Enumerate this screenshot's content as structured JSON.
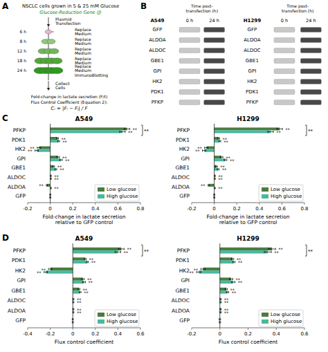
{
  "chart_data": [
    {
      "type": "diagram",
      "panel_label": "A",
      "categories": [
        "6 h",
        "8 h",
        "12 h",
        "18 h",
        "24 h"
      ],
      "colors": [
        "#e8b4cc",
        "#90c978",
        "#70b858",
        "#50a838",
        "#309820"
      ],
      "annotations": [
        {
          "text": "NSCLC cells grown in 5 & 25 mM Glucose"
        },
        {
          "text": "Glucose-Reduction Gene (J)",
          "color": "green"
        },
        {
          "text": "Plasmid\nTransfection"
        },
        {
          "text": "Replace\nMedium"
        },
        {
          "text": "Replace\nMedium"
        },
        {
          "text": "Replace\nMedium"
        },
        {
          "text": "Replace\nMedium"
        },
        {
          "text": "Replace\nMedium\nImmunoBlotting"
        },
        {
          "text": "Collect\nCells"
        },
        {
          "text": "Fold-change in lactate secretion (F/t)"
        },
        {
          "text": "Flux Control Coefficient (Equation 2):"
        },
        {
          "text": "Cᵢ = |Fᵢ − Fⱼ| / F"
        }
      ]
    },
    {
      "type": "blot",
      "panel_label": "B",
      "categories": [
        "GFP",
        "ALDOA",
        "ALDOC",
        "GBE1",
        "GPI",
        "HK2",
        "PDK1",
        "PFKP"
      ],
      "colors": [
        "#c8c8c8",
        "#484848"
      ],
      "annotations": [
        "Time post-\ntransfection (h)",
        "Time post-\ntransfection (h)",
        "A549",
        "0 h",
        "24 h",
        "H1299",
        "0 h",
        "24 h"
      ]
    },
    {
      "type": "bar",
      "orientation": "horizontal",
      "panel_label": "C",
      "title": "A549",
      "xlabel": "Fold-change in lactate secretion\nrelative to GFP control",
      "categories": [
        "GFP",
        "ALDOA",
        "ALDOC",
        "GBE1",
        "GPI",
        "HK2",
        "PDK1",
        "PFKP"
      ],
      "series": [
        {
          "name": "Low glucose",
          "color": "#4a7c3f",
          "values": [
            0,
            -0.03,
            0.005,
            0.03,
            0.07,
            -0.1,
            0.065,
            0.68
          ],
          "errors": [
            0.005,
            0.005,
            0.005,
            0.008,
            0.012,
            0.015,
            0.008,
            0.025
          ]
        },
        {
          "name": "High glucose",
          "color": "#4ab8a0",
          "values": [
            0,
            0.005,
            0.005,
            0.05,
            0.095,
            -0.12,
            0.075,
            0.64
          ],
          "errors": [
            0.005,
            0.005,
            0.005,
            0.008,
            0.012,
            0.015,
            0.008,
            0.025
          ]
        }
      ],
      "xlim": [
        -0.2,
        0.8
      ],
      "xticks": [
        -0.2,
        0,
        0.2,
        0.4,
        0.6,
        0.8
      ],
      "legend": "lower right",
      "grid": false,
      "annotations": [
        {
          "text": "**",
          "categories": [
            "ALDOA",
            "ALDOC",
            "GBE1",
            "GPI",
            "HK2",
            "PDK1",
            "PFKP"
          ]
        },
        {
          "text": "**",
          "bracket": "PFKP"
        }
      ]
    },
    {
      "type": "bar",
      "orientation": "horizontal",
      "title": "H1299",
      "xlabel": "Fold-change in lactate secretion\nrelative to GFP control",
      "categories": [
        "GFP",
        "ALDOA",
        "ALDOC",
        "GBE1",
        "GPI",
        "HK2",
        "PDK1",
        "PFKP"
      ],
      "series": [
        {
          "name": "Low glucose",
          "color": "#4a7c3f",
          "values": [
            0,
            -0.05,
            0.005,
            0.02,
            0.065,
            -0.07,
            0.04,
            0.58
          ],
          "errors": [
            0.005,
            0.005,
            0.005,
            0.008,
            0.012,
            0.015,
            0.008,
            0.025
          ]
        },
        {
          "name": "High glucose",
          "color": "#4ab8a0",
          "values": [
            0,
            0.005,
            0.005,
            0.035,
            0.1,
            -0.09,
            0.05,
            0.5
          ],
          "errors": [
            0.005,
            0.005,
            0.005,
            0.008,
            0.012,
            0.015,
            0.008,
            0.025
          ]
        }
      ],
      "xlim": [
        -0.2,
        0.8
      ],
      "xticks": [
        -0.2,
        0,
        0.2,
        0.4,
        0.6,
        0.8
      ],
      "legend": "lower right",
      "grid": false,
      "annotations": [
        {
          "text": "**",
          "categories": [
            "ALDOA",
            "ALDOC",
            "GBE1",
            "GPI",
            "HK2",
            "PDK1",
            "PFKP"
          ]
        },
        {
          "text": "**",
          "bracket": "PFKP"
        }
      ]
    },
    {
      "type": "bar",
      "orientation": "horizontal",
      "panel_label": "D",
      "title": "A549",
      "xlabel": "Flux control coefficient",
      "categories": [
        "GFP",
        "ALDOA",
        "ALDOC",
        "GBE1",
        "GPI",
        "HK2",
        "PDK1",
        "PFKP"
      ],
      "series": [
        {
          "name": "Low glucose",
          "color": "#4a7c3f",
          "values": [
            0,
            0.005,
            0.005,
            0.055,
            0.09,
            -0.2,
            0.11,
            0.43
          ],
          "errors": [
            0.005,
            0.005,
            0.005,
            0.008,
            0.012,
            0.015,
            0.008,
            0.025
          ]
        },
        {
          "name": "High glucose",
          "color": "#4ab8a0",
          "values": [
            0,
            0.005,
            0.005,
            0.065,
            0.1,
            -0.24,
            0.13,
            0.4
          ],
          "errors": [
            0.005,
            0.005,
            0.005,
            0.008,
            0.012,
            0.015,
            0.008,
            0.025
          ]
        }
      ],
      "xlim": [
        -0.4,
        0.6
      ],
      "xticks": [
        -0.4,
        -0.2,
        0,
        0.2,
        0.4,
        0.6
      ],
      "legend": "lower right",
      "grid": false,
      "annotations": [
        {
          "text": "**",
          "categories": [
            "ALDOA",
            "ALDOC",
            "GBE1",
            "GPI",
            "HK2",
            "PDK1",
            "PFKP"
          ]
        },
        {
          "text": "**",
          "bracket": "PFKP"
        }
      ]
    },
    {
      "type": "bar",
      "orientation": "horizontal",
      "title": "H1299",
      "xlabel": "Flux control coefficient",
      "categories": [
        "GFP",
        "ALDOA",
        "ALDOC",
        "GBE1",
        "GPI",
        "HK2",
        "PDK1",
        "PFKP"
      ],
      "series": [
        {
          "name": "Low glucose",
          "color": "#4a7c3f",
          "values": [
            0,
            0.005,
            0.005,
            0.045,
            0.08,
            -0.12,
            0.09,
            0.37
          ],
          "errors": [
            0.005,
            0.005,
            0.005,
            0.008,
            0.012,
            0.015,
            0.008,
            0.025
          ]
        },
        {
          "name": "High glucose",
          "color": "#4ab8a0",
          "values": [
            0,
            0.005,
            0.005,
            0.055,
            0.095,
            -0.15,
            0.1,
            0.34
          ],
          "errors": [
            0.005,
            0.005,
            0.005,
            0.008,
            0.012,
            0.015,
            0.008,
            0.025
          ]
        }
      ],
      "xlim": [
        -0.2,
        0.6
      ],
      "xticks": [
        -0.2,
        0,
        0.2,
        0.4,
        0.6
      ],
      "legend": "lower right",
      "grid": false,
      "annotations": [
        {
          "text": "**",
          "categories": [
            "ALDOA",
            "ALDOC",
            "GBE1",
            "GPI",
            "HK2",
            "PDK1",
            "PFKP"
          ]
        },
        {
          "text": "**",
          "bracket": "PFKP"
        }
      ]
    }
  ]
}
